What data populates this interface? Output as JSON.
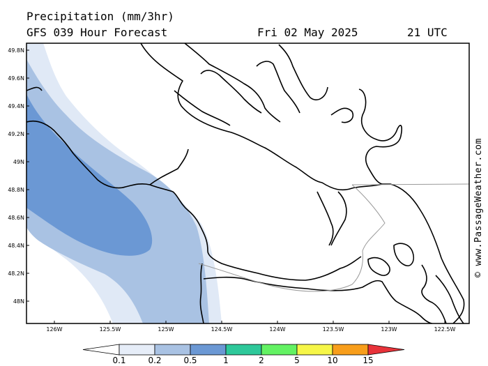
{
  "header": {
    "title": "Precipitation (mm/3hr)",
    "subtitle": "GFS 039 Hour Forecast",
    "date": "Fri 02 May 2025",
    "time": "21 UTC"
  },
  "watermark": "© www.PassageWeather.com",
  "map": {
    "lat_ticks": [
      "49.8N",
      "49.6N",
      "49.4N",
      "49.2N",
      "49N",
      "48.8N",
      "48.6N",
      "48.4N",
      "48.2N",
      "48N"
    ],
    "lon_ticks": [
      "126W",
      "125.5W",
      "125W",
      "124.5W",
      "124W",
      "123.5W",
      "123W",
      "122.5W"
    ],
    "lat_range": [
      48.0,
      50.0
    ],
    "lon_range": [
      -126.25,
      -122.25
    ]
  },
  "legend": {
    "labels": [
      "0.1",
      "0.2",
      "0.5",
      "1",
      "2",
      "5",
      "10",
      "15"
    ],
    "colors": [
      "#e6edf8",
      "#a9c2e3",
      "#6b98d4",
      "#2ec89a",
      "#63f263",
      "#f6f648",
      "#f89e1b",
      "#e8333a"
    ]
  },
  "precip_colors": {
    "light": "#e0e9f6",
    "mid": "#a9c2e3",
    "heavy": "#6b98d4"
  }
}
